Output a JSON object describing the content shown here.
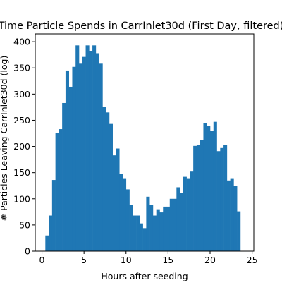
{
  "chart_data": {
    "type": "bar",
    "title": "Time Particle Spends in CarrInlet30d (First Day, filtered)",
    "xlabel": "Hours after seeding",
    "ylabel": "# Particles Leaving CarrInlet30d (log)",
    "xlim": [
      -0.8,
      25.2
    ],
    "ylim": [
      0,
      415
    ],
    "xticks": [
      0,
      5,
      10,
      15,
      20,
      25
    ],
    "yticks": [
      0,
      50,
      100,
      150,
      200,
      250,
      300,
      350,
      400
    ],
    "bin_start": 0.4,
    "bin_width": 0.4,
    "bar_color": "#1f77b4",
    "values": [
      30,
      68,
      136,
      225,
      233,
      283,
      345,
      314,
      352,
      393,
      358,
      371,
      393,
      382,
      393,
      378,
      358,
      275,
      265,
      243,
      183,
      196,
      148,
      138,
      118,
      88,
      68,
      68,
      53,
      44,
      104,
      88,
      68,
      80,
      74,
      85,
      85,
      100,
      100,
      122,
      111,
      142,
      138,
      152,
      201,
      203,
      212,
      245,
      239,
      230,
      247,
      191,
      197,
      203,
      135,
      138,
      124,
      76
    ]
  }
}
